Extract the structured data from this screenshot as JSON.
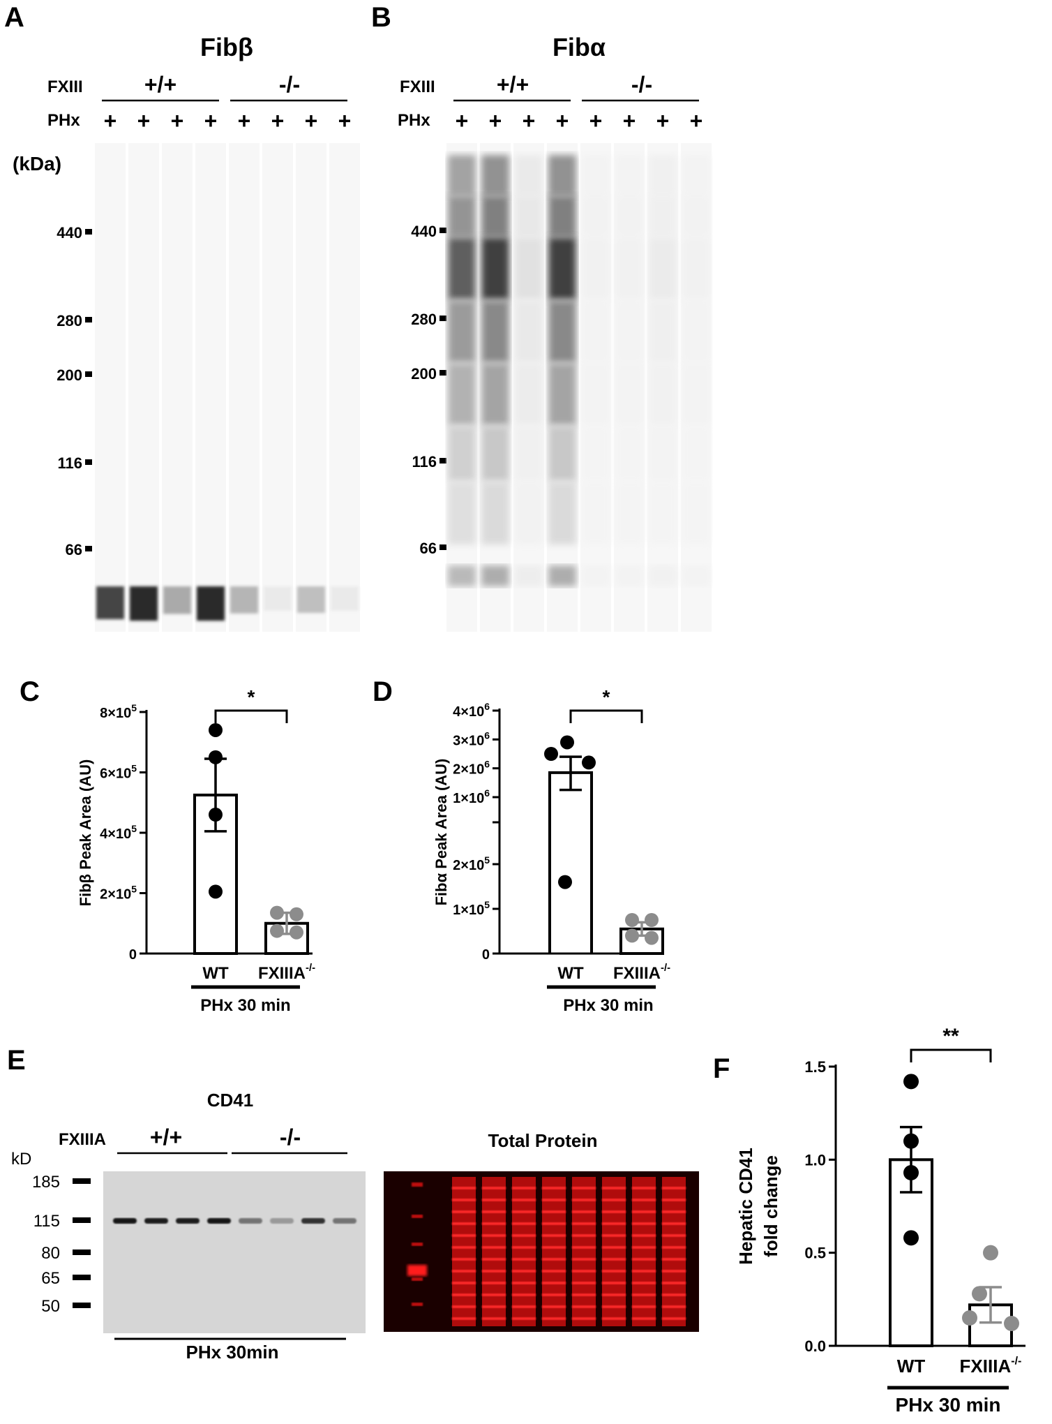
{
  "panels": {
    "A": {
      "letter": "A",
      "title": "Fibβ",
      "row_fxiii": "FXIII",
      "row_phx": "PHx",
      "group_wt": "+/+",
      "group_ko": "-/-",
      "lane_sign": "+",
      "unit": "(kDa)",
      "markers": [
        "440",
        "280",
        "200",
        "116",
        "66"
      ],
      "lane_band_intensity": [
        0.82,
        0.95,
        0.35,
        0.95,
        0.3,
        0.05,
        0.25,
        0.05
      ]
    },
    "B": {
      "letter": "B",
      "title": "Fibα",
      "row_fxiii": "FXIII",
      "row_phx": "PHx",
      "group_wt": "+/+",
      "group_ko": "-/-",
      "lane_sign": "+",
      "markers": [
        "440",
        "280",
        "200",
        "116",
        "66"
      ],
      "lane_smear_intensity": [
        0.75,
        0.9,
        0.1,
        0.9,
        0.02,
        0.02,
        0.05,
        0.02
      ]
    },
    "E": {
      "letter": "E",
      "blot_title": "CD41",
      "total_title": "Total Protein",
      "row_label": "FXIIIA",
      "group_wt": "+/+",
      "group_ko": "-/-",
      "unit": "kD",
      "markers": [
        "185",
        "115",
        "80",
        "65",
        "50"
      ],
      "footer": "PHx 30min",
      "band_intensity": [
        0.95,
        0.9,
        0.9,
        0.95,
        0.45,
        0.25,
        0.8,
        0.45
      ]
    }
  },
  "chart_data": [
    {
      "panel": "C",
      "type": "bar",
      "ylabel": "Fibβ Peak Area (AU)",
      "categories": [
        "WT",
        "FXIIIA-/-"
      ],
      "xlabel": "PHx 30 min",
      "ylim": [
        0,
        800000
      ],
      "yticks": [
        "0",
        "2×10⁵",
        "4×10⁵",
        "6×10⁵",
        "8×10⁵"
      ],
      "means": [
        525000,
        100000
      ],
      "sem": [
        120000,
        35000
      ],
      "points": [
        [
          740000,
          650000,
          460000,
          205000
        ],
        [
          135000,
          130000,
          75000,
          70000
        ]
      ],
      "significance": "*"
    },
    {
      "panel": "D",
      "type": "bar",
      "ylabel": "Fibα Peak Area (AU)",
      "categories": [
        "WT",
        "FXIIIA-/-"
      ],
      "xlabel": "PHx 30 min",
      "broken_axis": true,
      "lower_ylim": [
        0,
        250000
      ],
      "upper_ylim": [
        1000000,
        4000000
      ],
      "yticks_lower": [
        "0",
        "1×10⁵",
        "2×10⁵"
      ],
      "yticks_upper": [
        "1×10⁶",
        "2×10⁶",
        "3×10⁶",
        "4×10⁶"
      ],
      "means": [
        1850000,
        55000
      ],
      "sem_upper": [
        2400000,
        70000
      ],
      "sem_lower": [
        1250000,
        40000
      ],
      "points": [
        [
          2900000,
          2500000,
          2200000,
          160000
        ],
        [
          75000,
          75000,
          40000,
          35000
        ]
      ],
      "significance": "*"
    },
    {
      "panel": "F",
      "type": "bar",
      "ylabel_line1": "Hepatic CD41",
      "ylabel_line2": "fold change",
      "categories": [
        "WT",
        "FXIIIA-/-"
      ],
      "xlabel": "PHx 30 min",
      "ylim": [
        0,
        1.5
      ],
      "yticks": [
        "0.0",
        "0.5",
        "1.0",
        "1.5"
      ],
      "means": [
        1.0,
        0.22
      ],
      "sem": [
        0.175,
        0.095
      ],
      "points": [
        [
          1.42,
          1.1,
          0.93,
          0.58
        ],
        [
          0.5,
          0.28,
          0.15,
          0.12
        ]
      ],
      "significance": "**"
    }
  ],
  "colors": {
    "wt_point": "#000000",
    "ko_point": "#8c8c8c",
    "ko_error": "#8c8c8c",
    "total_protein_bg": "#1a0000",
    "total_protein_band": "#e01010",
    "blot_bg": "#d6d6d6"
  }
}
